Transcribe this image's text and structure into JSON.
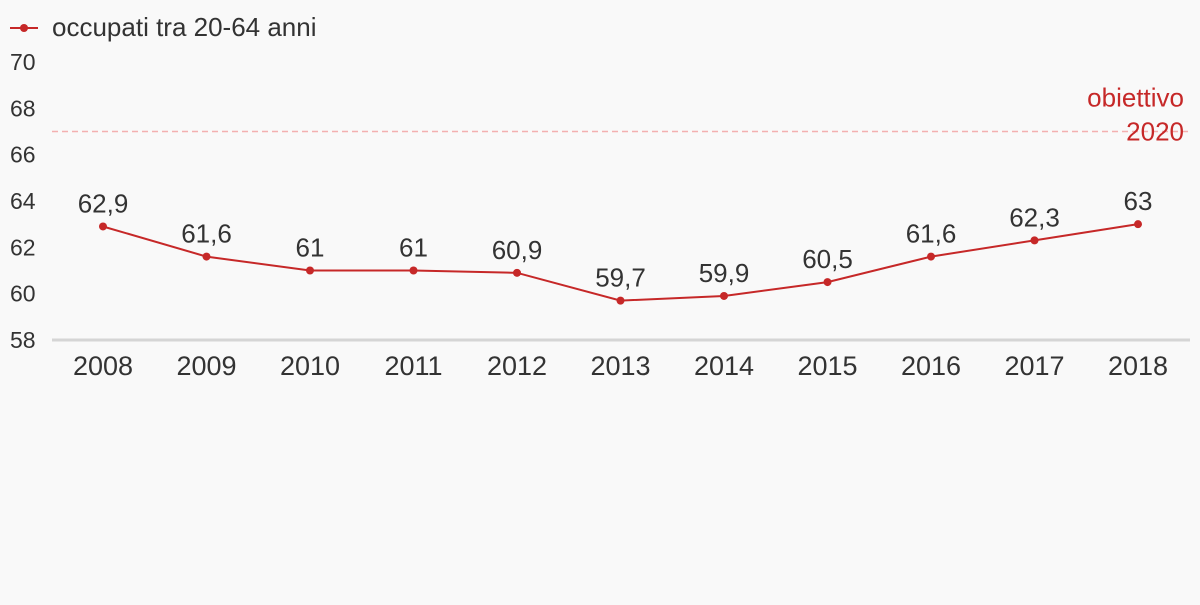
{
  "colors": {
    "background": "#f9f9f9",
    "series": "#c62828",
    "target_line": "#f3b0b0",
    "target_text": "#c62828",
    "axis_text": "#333333",
    "baseline": "#d5d5d5"
  },
  "chart_data": {
    "type": "line",
    "title": "",
    "xlabel": "",
    "ylabel": "",
    "x": [
      "2008",
      "2009",
      "2010",
      "2011",
      "2012",
      "2013",
      "2014",
      "2015",
      "2016",
      "2017",
      "2018"
    ],
    "series": [
      {
        "name": "occupati tra 20-64 anni",
        "values": [
          62.9,
          61.6,
          61,
          61,
          60.9,
          59.7,
          59.9,
          60.5,
          61.6,
          62.3,
          63
        ],
        "labels": [
          "62,9",
          "61,6",
          "61",
          "61",
          "60,9",
          "59,7",
          "59,9",
          "60,5",
          "61,6",
          "62,3",
          "63"
        ],
        "color": "#c62828"
      }
    ],
    "ylim": [
      58,
      70
    ],
    "yticks": [
      "58",
      "60",
      "62",
      "64",
      "66",
      "68",
      "70"
    ],
    "reference_line": {
      "value": 67,
      "label_line1": "obiettivo",
      "label_line2": "2020",
      "style": "dashed"
    },
    "legend": {
      "position": "top-left",
      "label": "occupati tra 20-64 anni"
    },
    "grid": false
  }
}
